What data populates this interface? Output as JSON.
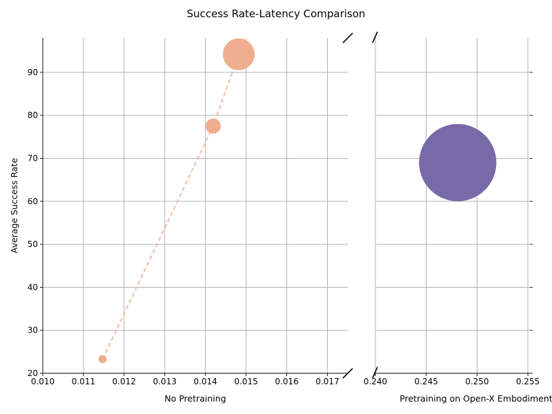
{
  "chart_data": {
    "type": "scatter",
    "title": "Success Rate-Latency Comparison",
    "ylabel": "Average Success Rate",
    "ylim": [
      20,
      98
    ],
    "yticks": [
      20,
      30,
      40,
      50,
      60,
      70,
      80,
      90
    ],
    "grid": true,
    "broken_x_axis": true,
    "panels": [
      {
        "xlabel": "No Pretraining",
        "xlim": [
          0.01,
          0.0175
        ],
        "xticks": [
          "0.010",
          "0.011",
          "0.012",
          "0.013",
          "0.014",
          "0.015",
          "0.016",
          "0.017"
        ],
        "color": "#eeae8f",
        "connected": true,
        "points": [
          {
            "x": 0.01147,
            "y": 23.3,
            "size": 1
          },
          {
            "x": 0.01419,
            "y": 77.5,
            "size": 2.5
          },
          {
            "x": 0.01482,
            "y": 94.2,
            "size": 5
          }
        ]
      },
      {
        "xlabel": "Pretraining on Open-X Embodiment",
        "xlim": [
          0.24,
          0.2552
        ],
        "xticks": [
          "0.240",
          "0.245",
          "0.250",
          "0.255"
        ],
        "color": "#786aa7",
        "connected": false,
        "points": [
          {
            "x": 0.2481,
            "y": 69.0,
            "size": 60
          }
        ]
      }
    ]
  }
}
